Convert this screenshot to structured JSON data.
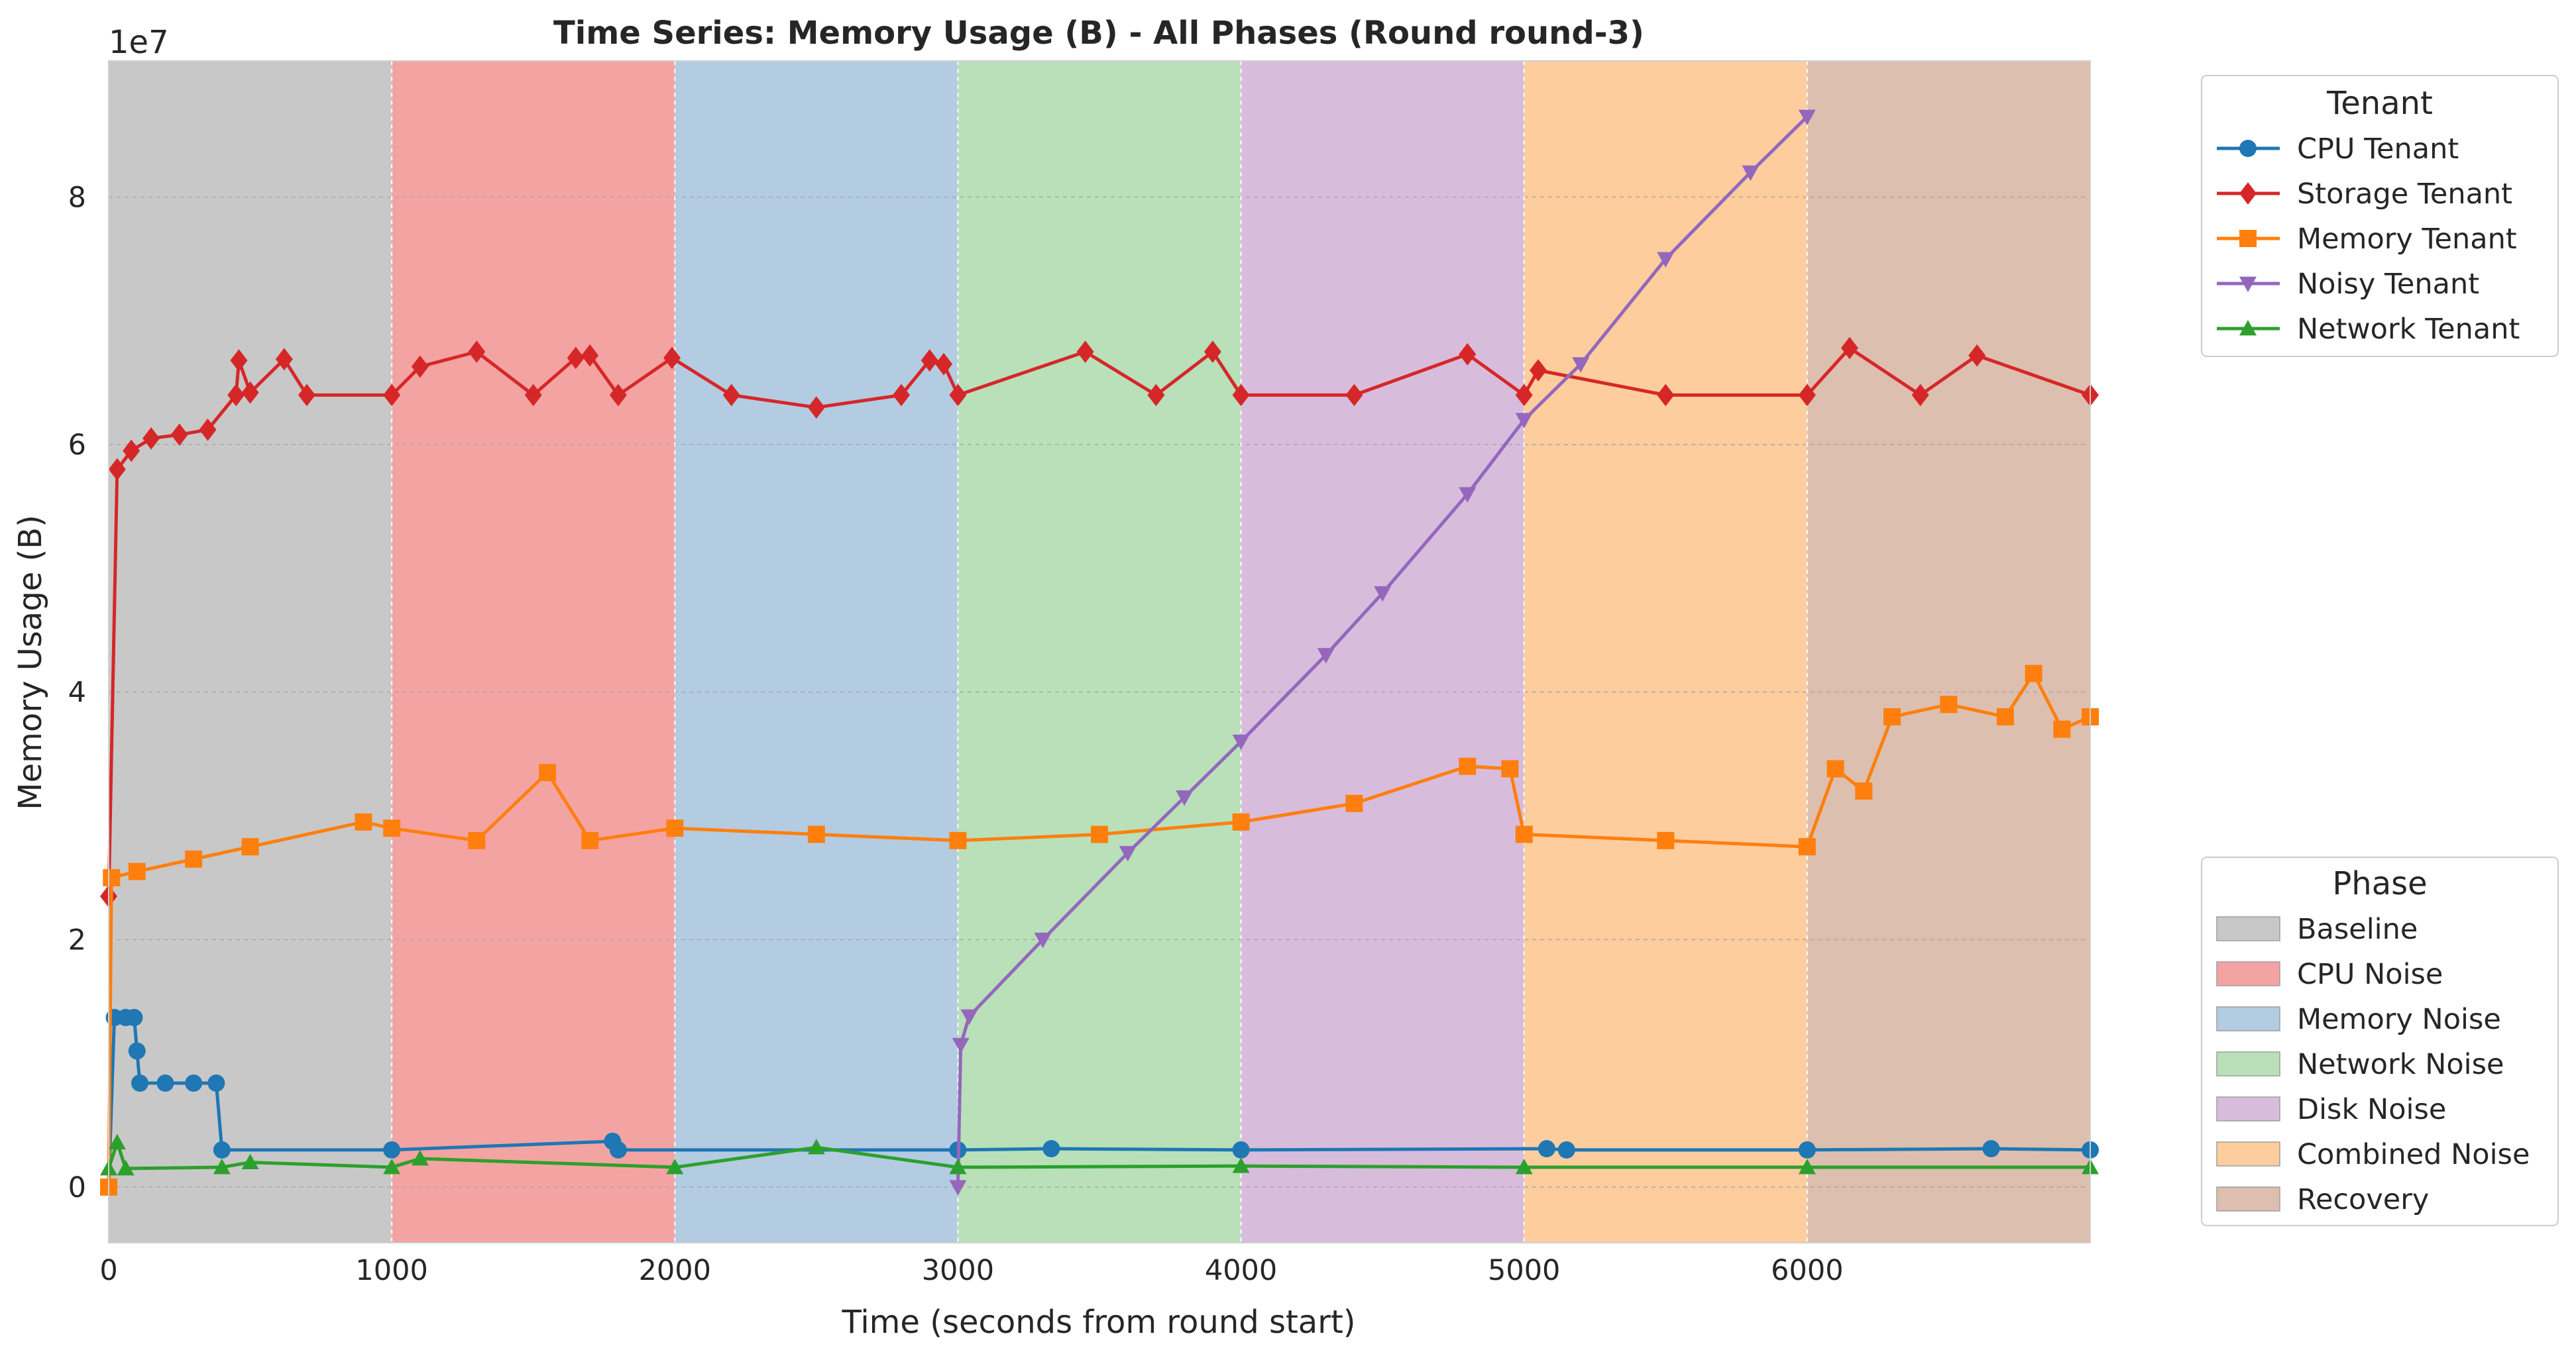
{
  "chart_data": {
    "type": "line",
    "title": "Time Series: Memory Usage (B) - All Phases (Round round-3)",
    "xlabel": "Time (seconds from round start)",
    "ylabel": "Memory Usage (B)",
    "y_offset_label": "1e7",
    "y_scale_multiplier": 10000000,
    "xlim": [
      0,
      7000
    ],
    "ylim": [
      -4500000,
      91000000
    ],
    "x_ticks": [
      0,
      1000,
      2000,
      3000,
      4000,
      5000,
      6000
    ],
    "x_tick_labels": [
      "0",
      "1000",
      "2000",
      "3000",
      "4000",
      "5000",
      "6000"
    ],
    "y_ticks": [
      0,
      20000000,
      40000000,
      60000000,
      80000000
    ],
    "y_tick_labels": [
      "0",
      "2",
      "4",
      "6",
      "8"
    ],
    "grid": true,
    "phases": [
      {
        "name": "Baseline",
        "start": 0,
        "end": 1000,
        "color": "#c8c8c8"
      },
      {
        "name": "CPU Noise",
        "start": 1000,
        "end": 2000,
        "color": "#f4a3a3"
      },
      {
        "name": "Memory Noise",
        "start": 2000,
        "end": 3000,
        "color": "#b3cce2"
      },
      {
        "name": "Network Noise",
        "start": 3000,
        "end": 4000,
        "color": "#b9e0b9"
      },
      {
        "name": "Disk Noise",
        "start": 4000,
        "end": 5000,
        "color": "#d8bcdc"
      },
      {
        "name": "Combined Noise",
        "start": 5000,
        "end": 6000,
        "color": "#fdcd9e"
      },
      {
        "name": "Recovery",
        "start": 6000,
        "end": 7000,
        "color": "#ddbfaf"
      }
    ],
    "tenant_legend_title": "Tenant",
    "phase_legend_title": "Phase",
    "tenant_legend_position": "upper right outside",
    "phase_legend_position": "lower right outside",
    "series": [
      {
        "name": "CPU Tenant",
        "color": "#1f77b4",
        "marker": "circle",
        "points": [
          [
            0,
            0
          ],
          [
            20,
            13700000
          ],
          [
            60,
            13700000
          ],
          [
            90,
            13700000
          ],
          [
            100,
            11000000
          ],
          [
            110,
            8400000
          ],
          [
            200,
            8400000
          ],
          [
            300,
            8400000
          ],
          [
            380,
            8400000
          ],
          [
            400,
            3000000
          ],
          [
            1000,
            3000000
          ],
          [
            1780,
            3700000
          ],
          [
            1800,
            3000000
          ],
          [
            3000,
            3000000
          ],
          [
            3330,
            3100000
          ],
          [
            4000,
            3000000
          ],
          [
            5080,
            3100000
          ],
          [
            5150,
            3000000
          ],
          [
            6000,
            3000000
          ],
          [
            6650,
            3100000
          ],
          [
            7000,
            3000000
          ]
        ]
      },
      {
        "name": "Storage Tenant",
        "color": "#d62728",
        "marker": "diamond",
        "points": [
          [
            0,
            23500000
          ],
          [
            30,
            58000000
          ],
          [
            80,
            59500000
          ],
          [
            150,
            60500000
          ],
          [
            250,
            60800000
          ],
          [
            350,
            61200000
          ],
          [
            450,
            64000000
          ],
          [
            460,
            66800000
          ],
          [
            500,
            64200000
          ],
          [
            620,
            66900000
          ],
          [
            700,
            64000000
          ],
          [
            1000,
            64000000
          ],
          [
            1100,
            66300000
          ],
          [
            1300,
            67500000
          ],
          [
            1500,
            64000000
          ],
          [
            1650,
            67000000
          ],
          [
            1700,
            67200000
          ],
          [
            1800,
            64000000
          ],
          [
            1990,
            67000000
          ],
          [
            2200,
            64000000
          ],
          [
            2500,
            63000000
          ],
          [
            2800,
            64000000
          ],
          [
            2900,
            66800000
          ],
          [
            2950,
            66500000
          ],
          [
            3000,
            64000000
          ],
          [
            3450,
            67500000
          ],
          [
            3700,
            64000000
          ],
          [
            3900,
            67500000
          ],
          [
            4000,
            64000000
          ],
          [
            4400,
            64000000
          ],
          [
            4800,
            67300000
          ],
          [
            5000,
            64000000
          ],
          [
            5050,
            66000000
          ],
          [
            5500,
            64000000
          ],
          [
            6000,
            64000000
          ],
          [
            6150,
            67800000
          ],
          [
            6400,
            64000000
          ],
          [
            6600,
            67200000
          ],
          [
            7000,
            64000000
          ]
        ]
      },
      {
        "name": "Memory Tenant",
        "color": "#ff7f0e",
        "marker": "square",
        "points": [
          [
            0,
            0
          ],
          [
            10,
            25000000
          ],
          [
            100,
            25500000
          ],
          [
            300,
            26500000
          ],
          [
            500,
            27500000
          ],
          [
            900,
            29500000
          ],
          [
            1000,
            29000000
          ],
          [
            1300,
            28000000
          ],
          [
            1550,
            33500000
          ],
          [
            1700,
            28000000
          ],
          [
            2000,
            29000000
          ],
          [
            2500,
            28500000
          ],
          [
            3000,
            28000000
          ],
          [
            3500,
            28500000
          ],
          [
            4000,
            29500000
          ],
          [
            4400,
            31000000
          ],
          [
            4800,
            34000000
          ],
          [
            4950,
            33800000
          ],
          [
            5000,
            28500000
          ],
          [
            5500,
            28000000
          ],
          [
            6000,
            27500000
          ],
          [
            6100,
            33800000
          ],
          [
            6200,
            32000000
          ],
          [
            6300,
            38000000
          ],
          [
            6500,
            39000000
          ],
          [
            6700,
            38000000
          ],
          [
            6800,
            41500000
          ],
          [
            6900,
            37000000
          ],
          [
            7000,
            38000000
          ]
        ]
      },
      {
        "name": "Noisy Tenant",
        "color": "#9467bd",
        "marker": "triangle-down",
        "points": [
          [
            3000,
            0
          ],
          [
            3010,
            11500000
          ],
          [
            3040,
            13800000
          ],
          [
            3300,
            20000000
          ],
          [
            3600,
            27000000
          ],
          [
            3800,
            31500000
          ],
          [
            4000,
            36000000
          ],
          [
            4300,
            43000000
          ],
          [
            4500,
            48000000
          ],
          [
            4800,
            56000000
          ],
          [
            5000,
            62000000
          ],
          [
            5200,
            66500000
          ],
          [
            5500,
            75000000
          ],
          [
            5800,
            82000000
          ],
          [
            6000,
            86500000
          ]
        ]
      },
      {
        "name": "Network Tenant",
        "color": "#2ca02c",
        "marker": "triangle-up",
        "points": [
          [
            0,
            1500000
          ],
          [
            30,
            3600000
          ],
          [
            60,
            1500000
          ],
          [
            400,
            1600000
          ],
          [
            500,
            2000000
          ],
          [
            1000,
            1600000
          ],
          [
            1100,
            2300000
          ],
          [
            2000,
            1600000
          ],
          [
            2500,
            3200000
          ],
          [
            3000,
            1600000
          ],
          [
            4000,
            1700000
          ],
          [
            5000,
            1600000
          ],
          [
            6000,
            1600000
          ],
          [
            7000,
            1600000
          ]
        ]
      }
    ]
  }
}
